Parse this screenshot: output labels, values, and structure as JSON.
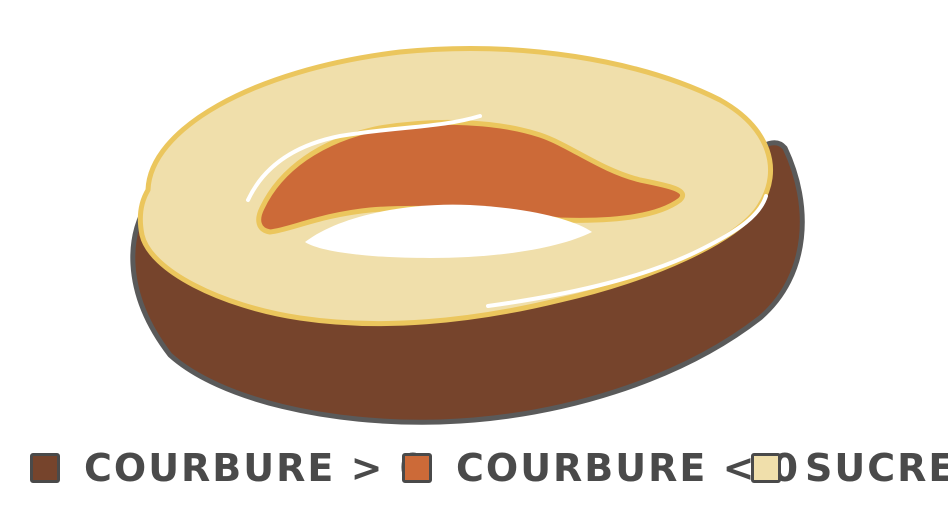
{
  "colors": {
    "background": "#ffffff",
    "cake_dark": "#76442c",
    "cake_outline": "#5a5a5a",
    "inner_orange": "#cc6a38",
    "sugar": "#f0dfab",
    "sugar_outline": "#ebc65d",
    "highlight": "#ffffff",
    "text": "#4a4a4a"
  },
  "legend": {
    "items": [
      {
        "label": "COURBURE > 0",
        "color": "#76442c"
      },
      {
        "label": "COURBURE < 0",
        "color": "#cc6a38"
      },
      {
        "label": "SUCRE",
        "color": "#f0dfab"
      }
    ]
  }
}
